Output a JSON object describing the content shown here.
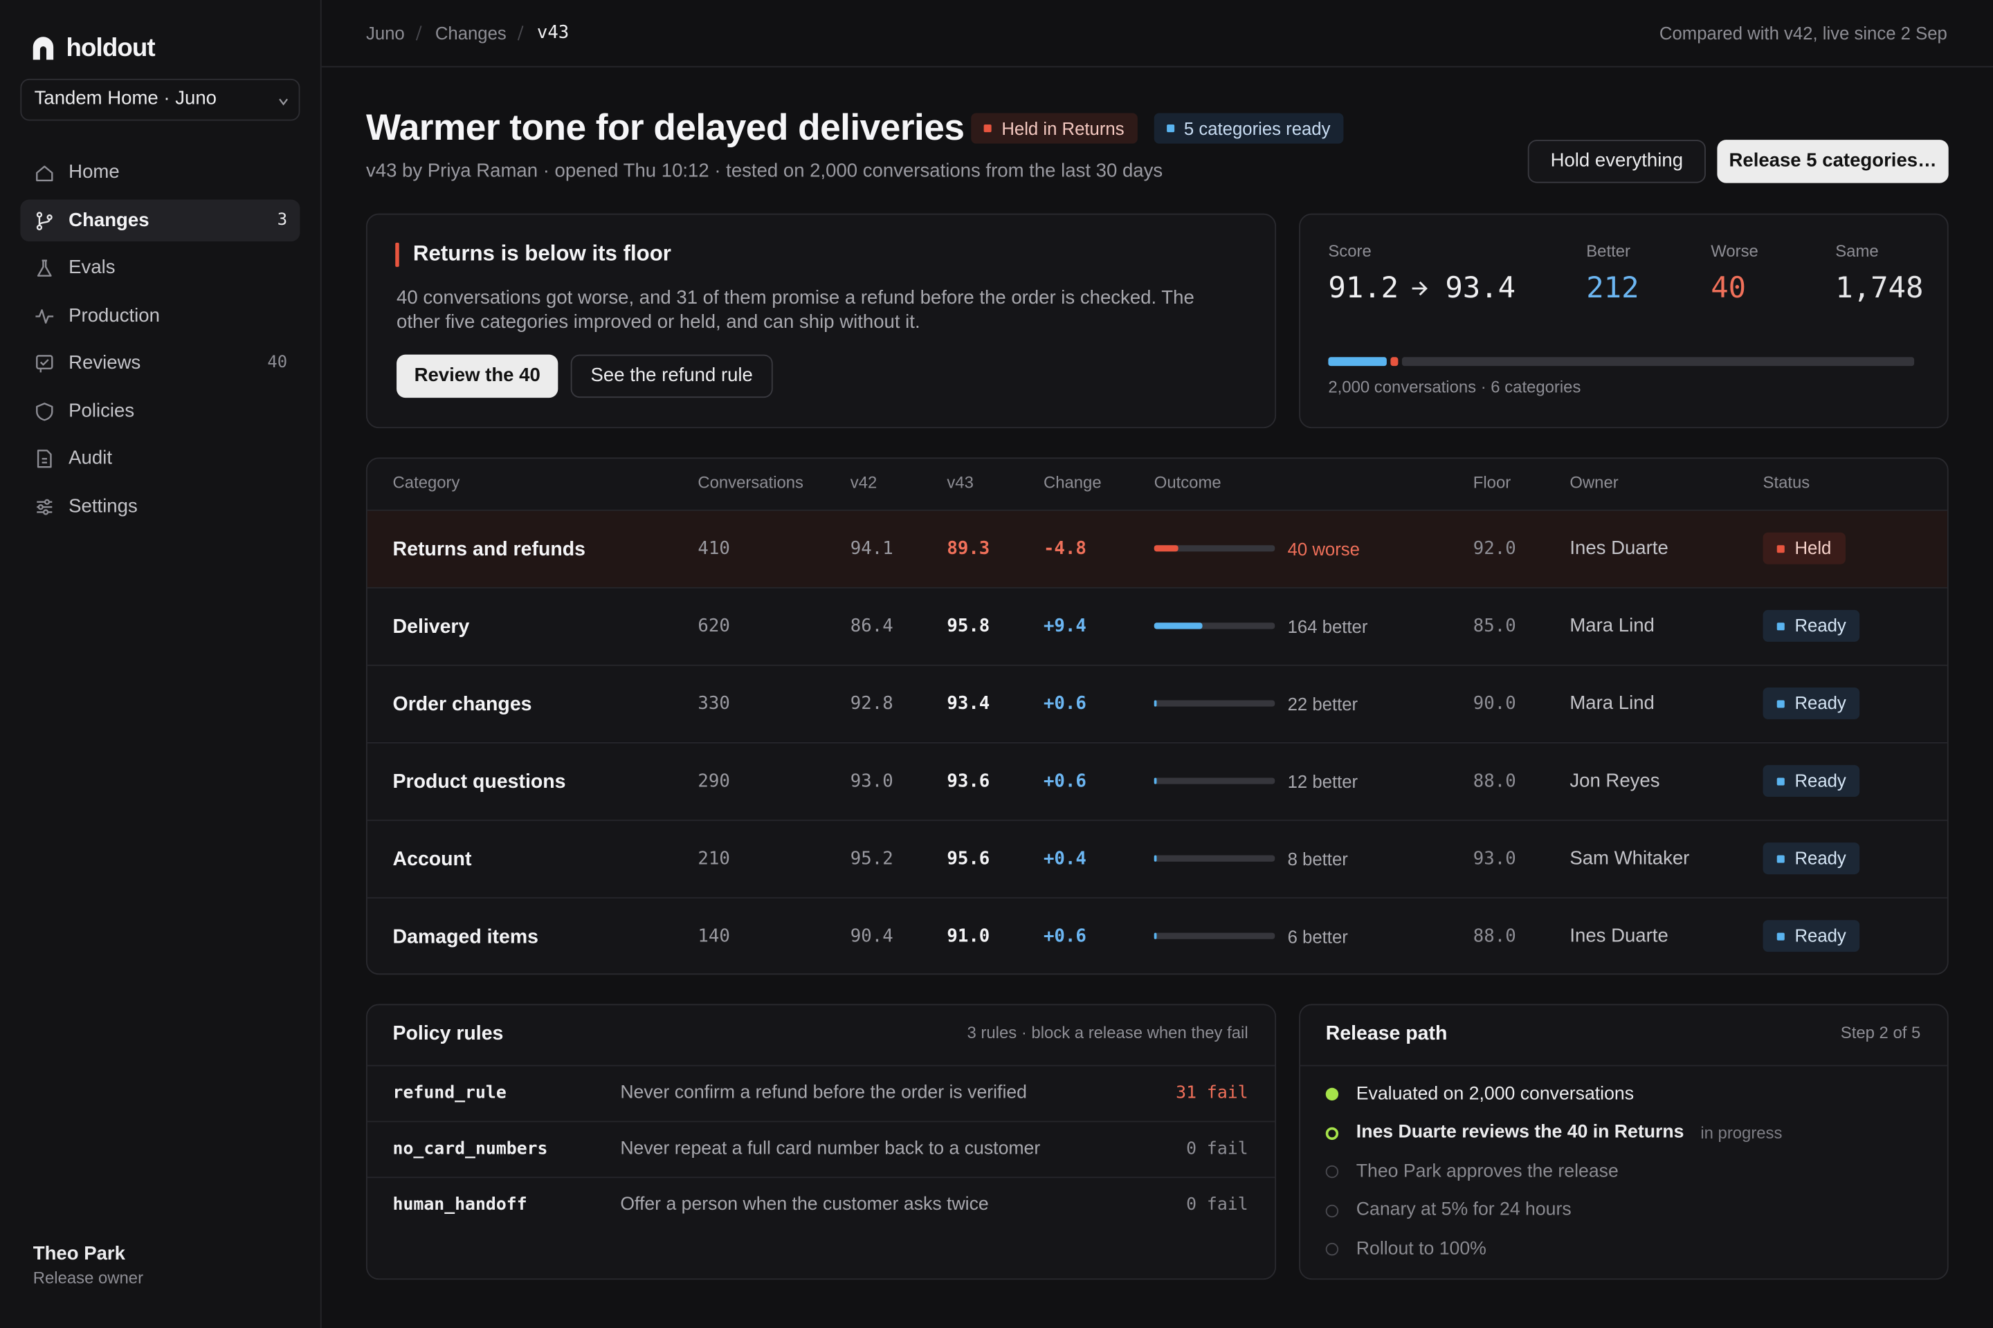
{
  "sidebar": {
    "brand": "holdout",
    "workspace": "Tandem Home · Juno",
    "nav": [
      {
        "label": "Home"
      },
      {
        "label": "Changes",
        "count": 3
      },
      {
        "label": "Evals"
      },
      {
        "label": "Production"
      },
      {
        "label": "Reviews",
        "count": 40
      },
      {
        "label": "Policies"
      },
      {
        "label": "Audit"
      },
      {
        "label": "Settings"
      }
    ],
    "user": {
      "name": "Theo Park",
      "role": "Release owner"
    }
  },
  "breadcrumb": [
    "Juno",
    "Changes",
    "v43"
  ],
  "comparison": "Compared with v42, live since 2 Sep",
  "header": {
    "title": "Warmer tone for delayed deliveries",
    "badges": [
      {
        "label": "Held in Returns",
        "tone": "red"
      },
      {
        "label": "5 categories ready",
        "tone": "blue"
      }
    ],
    "subtitle": "v43 by Priya Raman · opened Thu 10:12 · tested on 2,000 conversations from the last 30 days",
    "actions": [
      "Hold everything",
      "Release 5 categories…"
    ]
  },
  "alert": {
    "title": "Returns is below its floor",
    "body": "40 conversations got worse, and 31 of them promise a refund before the order is checked. The other five categories improved or held, and can ship without it.",
    "actions": [
      "Review the 40",
      "See the refund rule"
    ]
  },
  "summary": {
    "score_label": "Score",
    "score_from": 91.2,
    "score_to": 93.4,
    "better_label": "Better",
    "better": 212,
    "worse_label": "Worse",
    "worse": 40,
    "same_label": "Same",
    "same": {
      "value": 1748,
      "label": "1,748"
    },
    "caption": "2,000 conversations · 6 categories"
  },
  "table": {
    "columns": [
      "Category",
      "Conversations",
      "v42",
      "v43",
      "Change",
      "Outcome",
      "Floor",
      "Owner",
      "Status"
    ],
    "rows": [
      [
        "Returns and refunds",
        "410",
        "94.1",
        "89.3",
        "-4.8",
        "40 worse",
        "92.0",
        "Ines Duarte",
        "Held"
      ],
      [
        "Delivery",
        "620",
        "86.4",
        "95.8",
        "+9.4",
        "164 better",
        "85.0",
        "Mara Lind",
        "Ready"
      ],
      [
        "Order changes",
        "330",
        "92.8",
        "93.4",
        "+0.6",
        "22 better",
        "90.0",
        "Mara Lind",
        "Ready"
      ],
      [
        "Product questions",
        "290",
        "93.0",
        "93.6",
        "+0.6",
        "12 better",
        "88.0",
        "Jon Reyes",
        "Ready"
      ],
      [
        "Account",
        "210",
        "95.2",
        "95.6",
        "+0.4",
        "8 better",
        "93.0",
        "Sam Whitaker",
        "Ready"
      ],
      [
        "Damaged items",
        "140",
        "90.4",
        "91.0",
        "+0.6",
        "6 better",
        "88.0",
        "Ines Duarte",
        "Ready"
      ]
    ]
  },
  "policy": {
    "title": "Policy rules",
    "note": "3 rules · block a release when they fail",
    "rules": [
      {
        "name": "refund_rule",
        "description": "Never confirm a refund before the order is verified",
        "result": "31 fail",
        "failing": true
      },
      {
        "name": "no_card_numbers",
        "description": "Never repeat a full card number back to a customer",
        "result": "0 fail",
        "failing": false
      },
      {
        "name": "human_handoff",
        "description": "Offer a person when the customer asks twice",
        "result": "0 fail",
        "failing": false
      }
    ]
  },
  "release": {
    "title": "Release path",
    "step": "Step 2 of 5",
    "steps": [
      {
        "label": "Evaluated on 2,000 conversations",
        "state": "done"
      },
      {
        "label": "Ines Duarte reviews the 40 in Returns",
        "state": "current",
        "note": "in progress"
      },
      {
        "label": "Theo Park approves the release",
        "state": "todo"
      },
      {
        "label": "Canary at 5% for 24 hours",
        "state": "todo"
      },
      {
        "label": "Rollout to 100%",
        "state": "todo"
      }
    ]
  }
}
